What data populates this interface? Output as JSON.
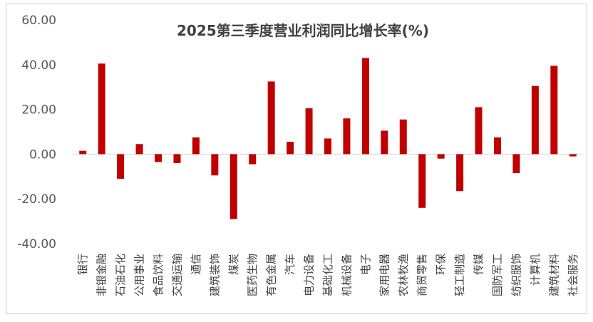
{
  "chart_data": {
    "type": "bar",
    "title": "2025第三季度营业利润同比增长率(%)",
    "xlabel": "",
    "ylabel": "",
    "ylim": [
      -40,
      60
    ],
    "yticks": [
      "60.00",
      "40.00",
      "20.00",
      "0.00",
      "-20.00",
      "-40.00"
    ],
    "ytick_values": [
      60,
      40,
      20,
      0,
      -20,
      -40
    ],
    "grid": false,
    "legend": "none",
    "bar_color": "#C00000",
    "categories": [
      "银行",
      "非银金融",
      "石油石化",
      "公用事业",
      "食品饮料",
      "交通运输",
      "通信",
      "建筑装饰",
      "煤炭",
      "医药生物",
      "有色金属",
      "汽车",
      "电力设备",
      "基础化工",
      "机械设备",
      "电子",
      "家用电器",
      "农林牧渔",
      "商贸零售",
      "环保",
      "轻工制造",
      "传媒",
      "国防军工",
      "纺织服饰",
      "计算机",
      "建筑材料",
      "社会服务"
    ],
    "values": [
      1.5,
      40.5,
      -11.0,
      4.5,
      -3.5,
      -4.0,
      7.5,
      -9.5,
      -29.0,
      -4.5,
      32.5,
      5.5,
      20.5,
      7.0,
      16.0,
      43.0,
      10.5,
      15.5,
      -24.0,
      -2.0,
      -16.5,
      21.0,
      7.5,
      -8.5,
      30.5,
      39.5,
      -1.0
    ]
  }
}
